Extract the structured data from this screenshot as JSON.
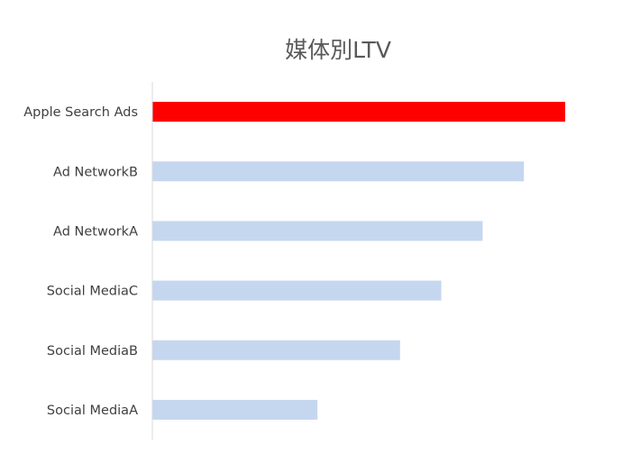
{
  "chart_data": {
    "type": "bar",
    "orientation": "horizontal",
    "title": "媒体別LTV",
    "categories": [
      "Apple Search Ads",
      "Ad NetworkB",
      "Ad NetworkA",
      "Social MediaC",
      "Social MediaB",
      "Social MediaA"
    ],
    "values": [
      10,
      9,
      8,
      7,
      6,
      4
    ],
    "xlim": [
      0,
      10
    ],
    "value_axis_shown": false,
    "grid": false,
    "legend": "none",
    "colors": {
      "highlight": "#FF0000",
      "default": "#C5D7EF",
      "axis": "#D9D9D9"
    },
    "highlight_category": "Apple Search Ads"
  }
}
